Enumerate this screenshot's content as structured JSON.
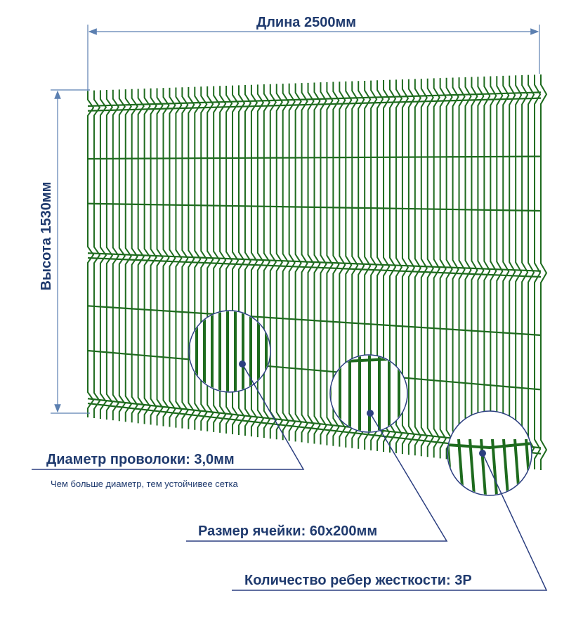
{
  "dimensions": {
    "length": "Длина 2500мм",
    "height": "Высота 1530мм"
  },
  "callouts": [
    {
      "label": "Диаметр проволоки: 3,0мм",
      "note": "Чем больше диаметр, тем устойчивее сетка"
    },
    {
      "label": "Размер ячейки: 60х200мм"
    },
    {
      "label": "Количество ребер жесткости: 3Р"
    }
  ]
}
